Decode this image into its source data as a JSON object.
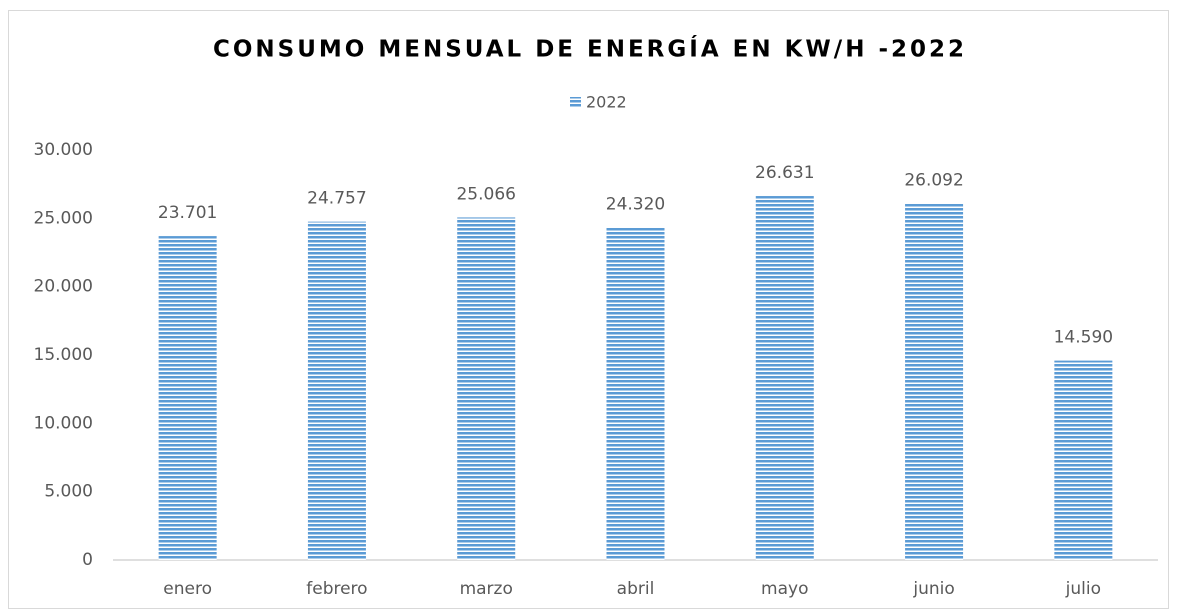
{
  "chart_data": {
    "type": "bar",
    "title": "CONSUMO MENSUAL DE ENERGÍA EN KW/H -2022",
    "categories": [
      "enero",
      "febrero",
      "marzo",
      "abril",
      "mayo",
      "junio",
      "julio"
    ],
    "series": [
      {
        "name": "2022",
        "color": "#5b9bd5",
        "values": [
          23701,
          24757,
          25066,
          24320,
          26631,
          26092,
          14590
        ],
        "value_labels": [
          "23.701",
          "24.757",
          "25.066",
          "24.320",
          "26.631",
          "26.092",
          "14.590"
        ]
      }
    ],
    "ylim": [
      0,
      30000
    ],
    "yticks": [
      0,
      {
        "value": 5000,
        "label": "5.000"
      },
      {
        "value": 10000,
        "label": "10.000"
      },
      {
        "value": 15000,
        "label": "15.000"
      },
      {
        "value": 20000,
        "label": "20.000"
      },
      {
        "value": 25000,
        "label": "25.000"
      },
      {
        "value": 30000,
        "label": "30.000"
      }
    ],
    "grid": false,
    "legend": "top"
  }
}
